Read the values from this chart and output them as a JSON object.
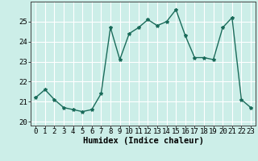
{
  "x": [
    0,
    1,
    2,
    3,
    4,
    5,
    6,
    7,
    8,
    9,
    10,
    11,
    12,
    13,
    14,
    15,
    16,
    17,
    18,
    19,
    20,
    21,
    22,
    23
  ],
  "y": [
    21.2,
    21.6,
    21.1,
    20.7,
    20.6,
    20.5,
    20.6,
    21.4,
    24.7,
    23.1,
    24.4,
    24.7,
    25.1,
    24.8,
    25.0,
    25.6,
    24.3,
    23.2,
    23.2,
    23.1,
    24.7,
    25.2,
    21.1,
    20.7
  ],
  "line_color": "#1a6b5a",
  "marker": "*",
  "marker_size": 3,
  "bg_color": "#cceee8",
  "grid_color": "#ffffff",
  "xlabel": "Humidex (Indice chaleur)",
  "xlim": [
    -0.5,
    23.5
  ],
  "ylim": [
    19.8,
    26.0
  ],
  "yticks": [
    20,
    21,
    22,
    23,
    24,
    25
  ],
  "xticks": [
    0,
    1,
    2,
    3,
    4,
    5,
    6,
    7,
    8,
    9,
    10,
    11,
    12,
    13,
    14,
    15,
    16,
    17,
    18,
    19,
    20,
    21,
    22,
    23
  ],
  "xlabel_fontsize": 7.5,
  "tick_fontsize": 6.5,
  "line_width": 1.0
}
